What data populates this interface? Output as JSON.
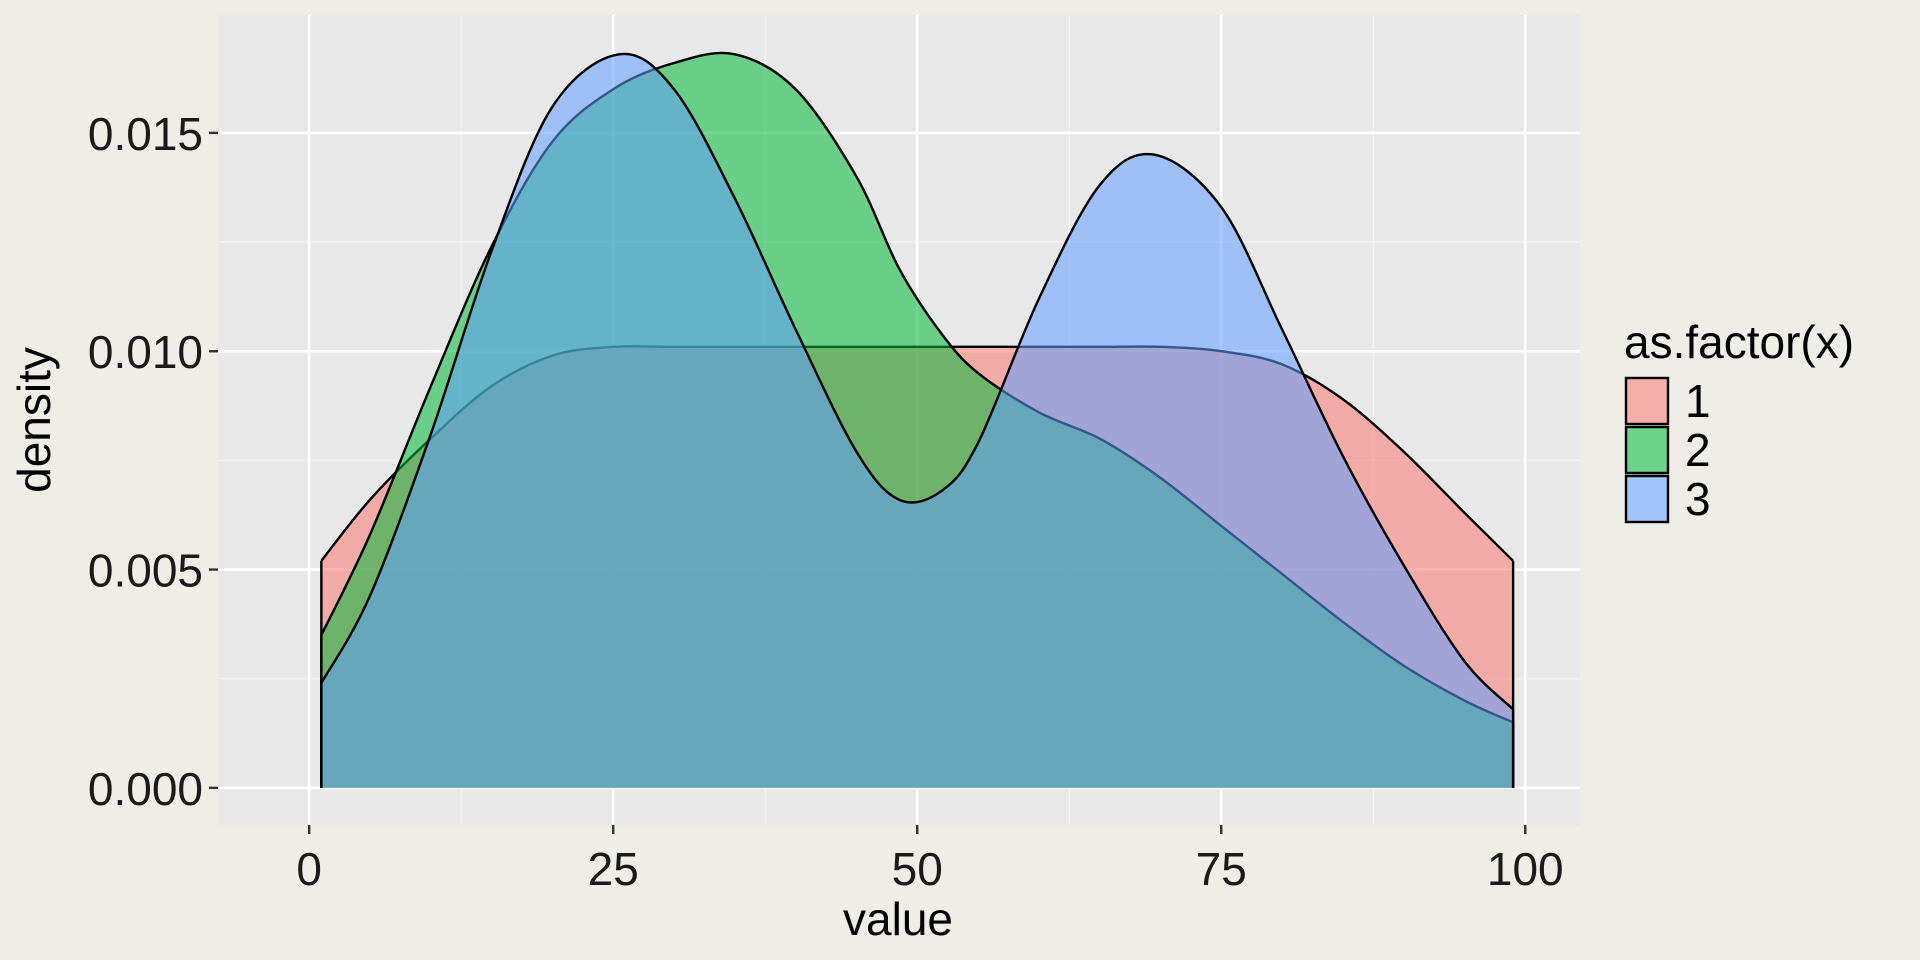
{
  "chart_data": {
    "type": "area",
    "subtype": "density",
    "xlabel": "value",
    "ylabel": "density",
    "xlim": [
      -7.5,
      104.5
    ],
    "ylim": [
      -0.00085,
      0.0177
    ],
    "x_ticks": [
      0,
      25,
      50,
      75,
      100
    ],
    "x_tick_labels": [
      "0",
      "25",
      "50",
      "75",
      "100"
    ],
    "y_ticks": [
      0.0,
      0.005,
      0.01,
      0.015
    ],
    "y_tick_labels": [
      "0.000",
      "0.005",
      "0.010",
      "0.015"
    ],
    "grid": true,
    "fill_alpha": 0.55,
    "legend": {
      "title": "as.factor(x)",
      "position": "right",
      "entries": [
        "1",
        "2",
        "3"
      ]
    },
    "series": [
      {
        "name": "1",
        "color": "#F8766D",
        "x": [
          1,
          5,
          10,
          15,
          20,
          25,
          30,
          35,
          40,
          45,
          50,
          55,
          60,
          65,
          70,
          75,
          80,
          85,
          90,
          95,
          99
        ],
        "y": [
          0.0052,
          0.0066,
          0.008,
          0.0092,
          0.0099,
          0.0101,
          0.0101,
          0.0101,
          0.0101,
          0.0101,
          0.0101,
          0.0101,
          0.0101,
          0.0101,
          0.0101,
          0.01,
          0.0097,
          0.0089,
          0.0077,
          0.0063,
          0.0052
        ]
      },
      {
        "name": "2",
        "color": "#00BA38",
        "x": [
          1,
          5,
          10,
          15,
          20,
          25,
          30,
          35,
          40,
          45,
          48.5,
          52,
          55,
          60,
          65,
          70,
          75,
          80,
          85,
          90,
          95,
          99
        ],
        "y": [
          0.0035,
          0.0058,
          0.0092,
          0.0124,
          0.0148,
          0.016,
          0.0166,
          0.0168,
          0.016,
          0.014,
          0.0119,
          0.0104,
          0.0095,
          0.0086,
          0.008,
          0.0071,
          0.006,
          0.0049,
          0.0038,
          0.0028,
          0.002,
          0.0015
        ]
      },
      {
        "name": "3",
        "color": "#619CFF",
        "x": [
          1,
          5,
          10,
          15,
          20,
          25.5,
          30,
          35,
          40,
          45,
          48.5,
          52,
          55,
          60,
          65,
          69.5,
          75,
          80,
          85,
          90,
          95,
          99
        ],
        "y": [
          0.0024,
          0.0044,
          0.0081,
          0.0123,
          0.0156,
          0.0168,
          0.016,
          0.0135,
          0.0105,
          0.0077,
          0.0066,
          0.0068,
          0.0079,
          0.0112,
          0.0138,
          0.0145,
          0.0133,
          0.0105,
          0.0076,
          0.0051,
          0.0029,
          0.0018
        ]
      }
    ]
  }
}
